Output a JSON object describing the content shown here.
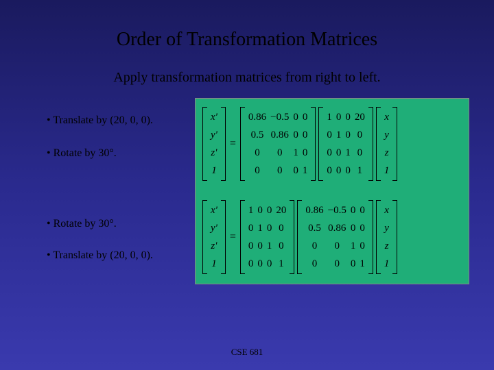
{
  "title": "Order of Transformation Matrices",
  "subtitle": "Apply transformation matrices from right to left.",
  "bullets": {
    "b1": "• Translate by (20, 0, 0).",
    "b2": "• Rotate by 30°.",
    "b3": "• Rotate by 30°.",
    "b4": "• Translate by (20, 0, 0)."
  },
  "footer": "CSE 681",
  "colors": {
    "panel_bg": "#1fae78",
    "slide_bg_top": "#1a1a5e",
    "slide_bg_bottom": "#3a3aae",
    "text": "#000000"
  },
  "eq1": {
    "lhs": [
      "x'",
      "y'",
      "z'",
      "1"
    ],
    "matA": [
      "0.86",
      "−0.5",
      "0",
      "0",
      "0.5",
      "0.86",
      "0",
      "0",
      "0",
      "0",
      "1",
      "0",
      "0",
      "0",
      "0",
      "1"
    ],
    "matB": [
      "1",
      "0",
      "0",
      "20",
      "0",
      "1",
      "0",
      "0",
      "0",
      "0",
      "1",
      "0",
      "0",
      "0",
      "0",
      "1"
    ],
    "rhs": [
      "x",
      "y",
      "z",
      "1"
    ]
  },
  "eq2": {
    "lhs": [
      "x'",
      "y'",
      "z'",
      "1"
    ],
    "matA": [
      "1",
      "0",
      "0",
      "20",
      "0",
      "1",
      "0",
      "0",
      "0",
      "0",
      "1",
      "0",
      "0",
      "0",
      "0",
      "1"
    ],
    "matB": [
      "0.86",
      "−0.5",
      "0",
      "0",
      "0.5",
      "0.86",
      "0",
      "0",
      "0",
      "0",
      "1",
      "0",
      "0",
      "0",
      "0",
      "1"
    ],
    "rhs": [
      "x",
      "y",
      "z",
      "1"
    ]
  },
  "eq_sign": "="
}
